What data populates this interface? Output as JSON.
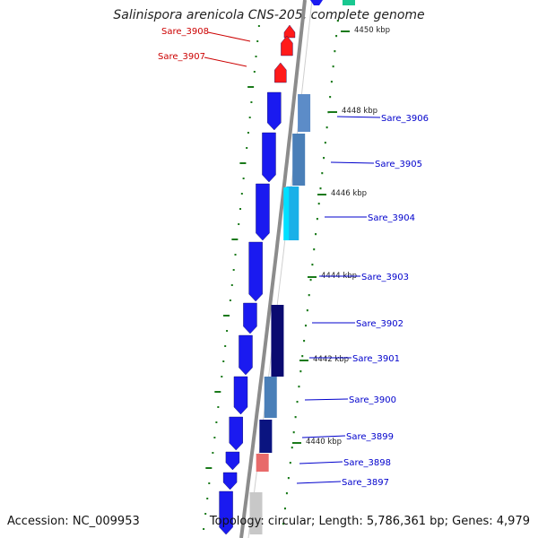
{
  "title": "Salinispora arenicola CNS-205, complete genome",
  "accession": "Accession: NC_009953",
  "topology": "Topology: circular; Length: 5,786,361 bp; Genes: 4,979",
  "colors": {
    "backbone": "#8c8c8c",
    "forward_gene": "#1a1af0",
    "reverse_gene": "#ff1a1a",
    "label_blue": "#0000cc",
    "label_red": "#cc0000",
    "gc_ticks": "#1a7a1a"
  },
  "kbp_markers": [
    "4450 kbp",
    "4448 kbp",
    "4446 kbp",
    "4444 kbp",
    "4442 kbp",
    "4440 kbp"
  ],
  "genes": [
    {
      "id": "Sare_3908",
      "strand": "reverse"
    },
    {
      "id": "Sare_3907",
      "strand": "reverse"
    },
    {
      "id": "Sare_3906",
      "strand": "forward"
    },
    {
      "id": "Sare_3905",
      "strand": "forward"
    },
    {
      "id": "Sare_3904",
      "strand": "forward"
    },
    {
      "id": "Sare_3903",
      "strand": "forward"
    },
    {
      "id": "Sare_3902",
      "strand": "forward"
    },
    {
      "id": "Sare_3901",
      "strand": "forward"
    },
    {
      "id": "Sare_3900",
      "strand": "forward"
    },
    {
      "id": "Sare_3899",
      "strand": "forward"
    },
    {
      "id": "Sare_3898",
      "strand": "forward"
    },
    {
      "id": "Sare_3897",
      "strand": "forward"
    }
  ]
}
